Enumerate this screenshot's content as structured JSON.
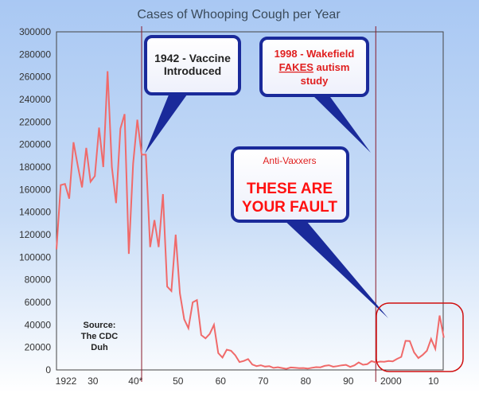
{
  "chart_data": {
    "type": "line",
    "title": "Cases of Whooping Cough per Year",
    "xlabel": "",
    "ylabel": "",
    "ylim": [
      0,
      300000
    ],
    "xlim": [
      1922,
      2013
    ],
    "y_ticks": [
      "0",
      "20000",
      "40000",
      "60000",
      "80000",
      "100000",
      "120000",
      "140000",
      "160000",
      "180000",
      "200000",
      "220000",
      "240000",
      "260000",
      "280000",
      "300000"
    ],
    "x_ticks": [
      {
        "year": 1922,
        "label": "1922"
      },
      {
        "year": 1930,
        "label": "30"
      },
      {
        "year": 1940,
        "label": "40*"
      },
      {
        "year": 1950,
        "label": "50"
      },
      {
        "year": 1960,
        "label": "60"
      },
      {
        "year": 1970,
        "label": "70"
      },
      {
        "year": 1980,
        "label": "80"
      },
      {
        "year": 1990,
        "label": "90"
      },
      {
        "year": 2000,
        "label": "2000"
      },
      {
        "year": 2010,
        "label": "10"
      }
    ],
    "grid": false,
    "series": [
      {
        "name": "Cases",
        "color": "#f06a6a",
        "x": [
          1922,
          1923,
          1924,
          1925,
          1926,
          1927,
          1928,
          1929,
          1930,
          1931,
          1932,
          1933,
          1934,
          1935,
          1936,
          1937,
          1938,
          1939,
          1940,
          1941,
          1942,
          1943,
          1944,
          1945,
          1946,
          1947,
          1948,
          1949,
          1950,
          1951,
          1952,
          1953,
          1954,
          1955,
          1956,
          1957,
          1958,
          1959,
          1960,
          1961,
          1962,
          1963,
          1964,
          1965,
          1966,
          1967,
          1968,
          1969,
          1970,
          1971,
          1972,
          1973,
          1974,
          1975,
          1976,
          1977,
          1978,
          1979,
          1980,
          1981,
          1982,
          1983,
          1984,
          1985,
          1986,
          1987,
          1988,
          1989,
          1990,
          1991,
          1992,
          1993,
          1994,
          1995,
          1996,
          1997,
          1998,
          1999,
          2000,
          2001,
          2002,
          2003,
          2004,
          2005,
          2006,
          2007,
          2008,
          2009,
          2010,
          2011,
          2012,
          2013
        ],
        "values": [
          107000,
          164000,
          165000,
          152000,
          202000,
          181000,
          162000,
          197000,
          167000,
          172000,
          215000,
          180000,
          265000,
          180000,
          148000,
          214000,
          227000,
          103000,
          183000,
          222000,
          191000,
          191000,
          109000,
          133000,
          109000,
          156000,
          74000,
          70000,
          120000,
          68000,
          45000,
          37000,
          60000,
          62000,
          31000,
          28000,
          32000,
          40000,
          15000,
          11000,
          18000,
          17000,
          13000,
          7000,
          8000,
          9700,
          4800,
          3400,
          4200,
          3000,
          3300,
          1800,
          2400,
          1700,
          1000,
          2200,
          2000,
          1600,
          1700,
          1200,
          1900,
          2500,
          2300,
          3600,
          4200,
          2800,
          3400,
          4100,
          4500,
          2700,
          4100,
          6600,
          4600,
          5100,
          7800,
          6600,
          7400,
          7300,
          7900,
          7600,
          9800,
          11600,
          25800,
          25600,
          15600,
          10500,
          13300,
          17000,
          27500,
          18700,
          48300,
          28600
        ]
      }
    ],
    "markers": [
      {
        "year": 1942
      },
      {
        "year": 1997
      }
    ],
    "annotations": {
      "vaccine": [
        "1942 - Vaccine",
        "Introduced"
      ],
      "wakefield_line1": "1998 - Wakefield",
      "wakefield_fakes": "FAKES",
      "wakefield_autism": " autism",
      "wakefield_line3": "study",
      "antivax_small": "Anti-Vaxxers",
      "antivax_big": [
        "THESE ARE",
        "YOUR FAULT"
      ],
      "source": [
        "Source:",
        "The CDC",
        "Duh"
      ]
    }
  }
}
